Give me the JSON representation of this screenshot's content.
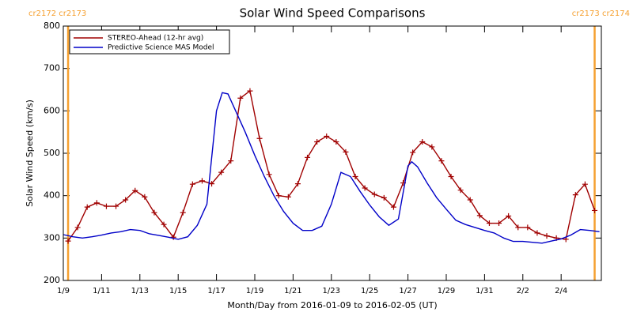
{
  "chart_data": {
    "type": "line",
    "title": "Solar Wind Speed Comparisons",
    "xlabel": "Month/Day from 2016-01-09 to 2016-02-05 (UT)",
    "ylabel": "Solar Wind Speed (km/s)",
    "xlim": [
      0,
      28.1
    ],
    "xticks": [
      {
        "value": 0,
        "label": "1/9"
      },
      {
        "value": 2,
        "label": "1/11"
      },
      {
        "value": 4,
        "label": "1/13"
      },
      {
        "value": 6,
        "label": "1/15"
      },
      {
        "value": 8,
        "label": "1/17"
      },
      {
        "value": 10,
        "label": "1/19"
      },
      {
        "value": 12,
        "label": "1/21"
      },
      {
        "value": 14,
        "label": "1/23"
      },
      {
        "value": 16,
        "label": "1/25"
      },
      {
        "value": 18,
        "label": "1/27"
      },
      {
        "value": 20,
        "label": "1/29"
      },
      {
        "value": 22,
        "label": "1/31"
      },
      {
        "value": 24,
        "label": "2/2"
      },
      {
        "value": 26,
        "label": "2/4"
      }
    ],
    "ylim": [
      200,
      800
    ],
    "yticks": [
      200,
      300,
      400,
      500,
      600,
      700,
      800
    ],
    "markers": [
      {
        "x": 0.25,
        "label": "cr2172 cr2173"
      },
      {
        "x": 27.75,
        "label": "cr2173 cr2174"
      }
    ],
    "marker_color": "#f5a030",
    "series": [
      {
        "name": "STEREO-Ahead (12-hr avg)",
        "color": "#a00000",
        "x": [
          0.25,
          0.75,
          1.25,
          1.75,
          2.25,
          2.75,
          3.25,
          3.75,
          4.25,
          4.75,
          5.25,
          5.75,
          6.25,
          6.75,
          7.25,
          7.75,
          8.25,
          8.75,
          9.25,
          9.75,
          10.25,
          10.75,
          11.25,
          11.75,
          12.25,
          12.75,
          13.25,
          13.75,
          14.25,
          14.75,
          15.25,
          15.75,
          16.25,
          16.75,
          17.25,
          17.75,
          18.25,
          18.75,
          19.25,
          19.75,
          20.25,
          20.75,
          21.25,
          21.75,
          22.25,
          22.75,
          23.25,
          23.75,
          24.25,
          24.75,
          25.25,
          25.75,
          26.25,
          26.75,
          27.25,
          27.75
        ],
        "values": [
          293,
          325,
          373,
          383,
          375,
          375,
          390,
          412,
          397,
          360,
          332,
          302,
          360,
          427,
          435,
          428,
          455,
          482,
          630,
          647,
          535,
          450,
          400,
          397,
          428,
          490,
          527,
          540,
          527,
          503,
          445,
          418,
          403,
          395,
          373,
          430,
          502,
          527,
          515,
          482,
          445,
          413,
          390,
          353,
          335,
          335,
          352,
          325,
          325,
          312,
          305,
          300,
          297,
          402,
          427,
          365
        ]
      },
      {
        "name": "Predictive Science MAS Model",
        "color": "#0000c8",
        "x": [
          0,
          0.5,
          1,
          1.5,
          2,
          2.5,
          3,
          3.5,
          4,
          4.5,
          5,
          5.5,
          6,
          6.5,
          7,
          7.5,
          8,
          8.3,
          8.6,
          9,
          9.5,
          10,
          10.5,
          11,
          11.5,
          12,
          12.5,
          13,
          13.5,
          14,
          14.5,
          15,
          15.5,
          16,
          16.5,
          17,
          17.5,
          18,
          18.2,
          18.5,
          19,
          19.5,
          20,
          20.5,
          21,
          21.5,
          22,
          22.5,
          23,
          23.5,
          24,
          24.5,
          25,
          25.5,
          26,
          26.5,
          27,
          27.5,
          28
        ],
        "values": [
          308,
          303,
          300,
          303,
          307,
          312,
          315,
          320,
          318,
          310,
          306,
          302,
          297,
          303,
          330,
          380,
          600,
          643,
          640,
          600,
          550,
          495,
          445,
          400,
          363,
          335,
          318,
          318,
          328,
          380,
          455,
          445,
          410,
          378,
          350,
          330,
          345,
          470,
          480,
          468,
          430,
          395,
          368,
          342,
          332,
          325,
          318,
          312,
          300,
          292,
          292,
          290,
          288,
          293,
          298,
          307,
          320,
          318,
          315
        ]
      }
    ]
  }
}
